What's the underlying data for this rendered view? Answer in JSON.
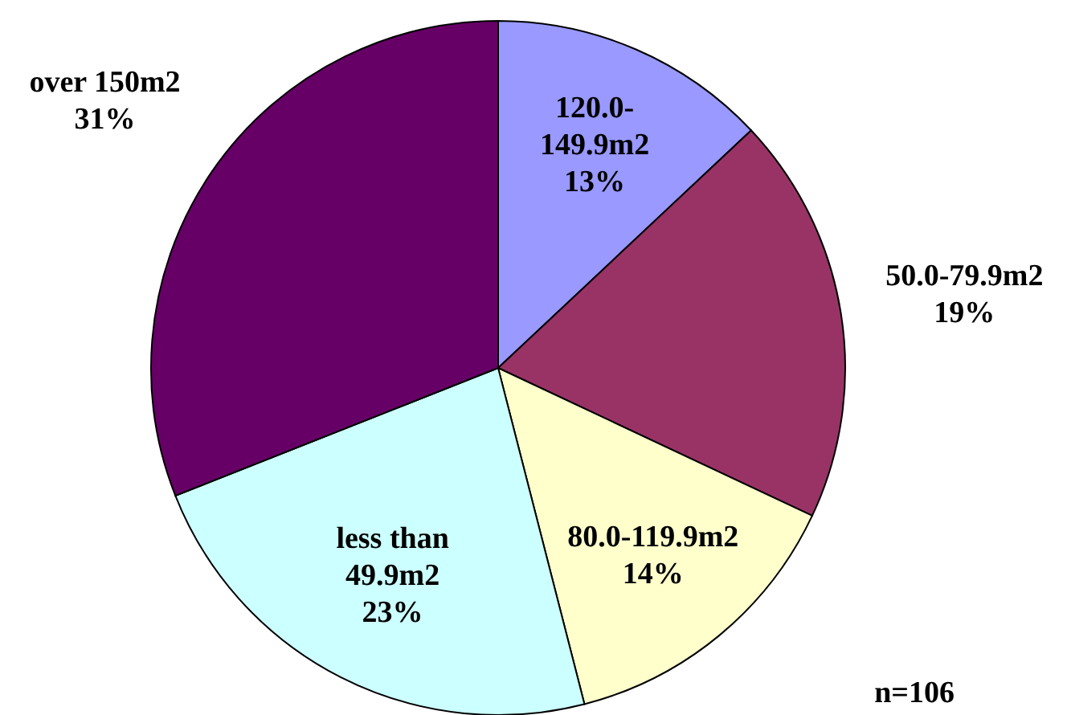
{
  "chart_data": {
    "type": "pie",
    "categories": [
      "120.0-149.9m2",
      "50.0-79.9m2",
      "80.0-119.9m2",
      "less than 49.9m2",
      "over 150m2"
    ],
    "values": [
      13,
      19,
      14,
      23,
      31
    ],
    "value_labels": [
      "13%",
      "19%",
      "14%",
      "23%",
      "31%"
    ],
    "colors": [
      "#9999ff",
      "#993366",
      "#ffffcc",
      "#ccffff",
      "#660066"
    ],
    "annotations": [
      "n=106"
    ]
  }
}
